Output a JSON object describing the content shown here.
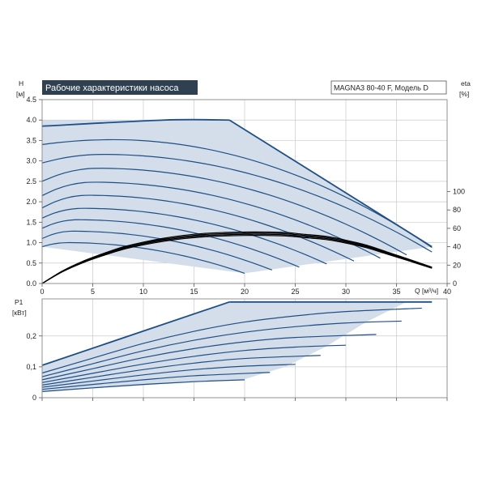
{
  "chart_data": [
    {
      "type": "line",
      "title": "Рабочие характеристики насоса",
      "model": "MAGNA3 80-40 F, Модель D",
      "xlabel": "Q [м³/ч]",
      "ylabel_top": "H",
      "ylabel_bottom": "[м]",
      "y2label_top": "eta",
      "y2label_bottom": "[%]",
      "xlim": [
        0,
        40
      ],
      "ylim": [
        0,
        4.5
      ],
      "y2lim": [
        0,
        100
      ],
      "x_ticks": [
        "0",
        "5",
        "10",
        "15",
        "20",
        "25",
        "30",
        "35",
        "40"
      ],
      "y_ticks": [
        "0.0",
        "0.5",
        "1.0",
        "1.5",
        "2.0",
        "2.5",
        "3.0",
        "3.5",
        "4.0",
        "4.5"
      ],
      "y2_ticks": [
        "0",
        "20",
        "40",
        "60",
        "80",
        "100"
      ],
      "grid": true,
      "envelope": {
        "x": [
          0,
          18.5,
          38.5,
          20,
          0
        ],
        "y": [
          4.0,
          4.0,
          0.9,
          0.25,
          0.9
        ]
      },
      "series": [
        {
          "shutoff": 0.9,
          "peak_x": 2.5,
          "peak": 1.0,
          "end_x": 20.0,
          "end": 0.25
        },
        {
          "shutoff": 1.1,
          "peak_x": 3.0,
          "peak": 1.28,
          "end_x": 22.7,
          "end": 0.33
        },
        {
          "shutoff": 1.35,
          "peak_x": 3.5,
          "peak": 1.56,
          "end_x": 25.4,
          "end": 0.4
        },
        {
          "shutoff": 1.6,
          "peak_x": 4.0,
          "peak": 1.84,
          "end_x": 28.1,
          "end": 0.48
        },
        {
          "shutoff": 1.85,
          "peak_x": 4.5,
          "peak": 2.16,
          "end_x": 30.8,
          "end": 0.55
        },
        {
          "shutoff": 2.15,
          "peak_x": 5.0,
          "peak": 2.48,
          "end_x": 33.4,
          "end": 0.62
        },
        {
          "shutoff": 2.5,
          "peak_x": 5.5,
          "peak": 2.82,
          "end_x": 36.0,
          "end": 0.7
        },
        {
          "shutoff": 2.95,
          "peak_x": 6.0,
          "peak": 3.16,
          "end_x": 38.5,
          "end": 0.77
        },
        {
          "shutoff": 3.4,
          "peak_x": 7.0,
          "peak": 3.52,
          "end_x": 38.5,
          "end": 0.88
        }
      ],
      "top_curve": {
        "x": [
          0,
          12,
          18.5
        ],
        "y": [
          3.85,
          4.0,
          4.0
        ]
      },
      "efficiency": {
        "x": [
          0,
          2,
          4,
          6,
          8,
          10,
          12,
          14,
          16,
          18,
          20,
          22,
          24,
          26,
          28,
          30,
          32,
          34,
          36,
          38.5
        ],
        "y": [
          0,
          13,
          23,
          31,
          38,
          43,
          47,
          50,
          52,
          53,
          53.5,
          53.5,
          53,
          51,
          49,
          45,
          40,
          33,
          26,
          17
        ]
      }
    },
    {
      "type": "line",
      "ylabel_top": "P1",
      "ylabel_bottom": "[кВт]",
      "xlim": [
        0,
        40
      ],
      "ylim": [
        0,
        0.32
      ],
      "y_ticks": [
        "0",
        "0,1",
        "0,2"
      ],
      "y_tick_values": [
        0,
        0.1,
        0.2
      ],
      "grid": true,
      "envelope": {
        "x": [
          0,
          18.5,
          38.5,
          36,
          32,
          28,
          24,
          20,
          0
        ],
        "y": [
          0.105,
          0.31,
          0.31,
          0.31,
          0.245,
          0.165,
          0.1,
          0.06,
          0.02
        ]
      },
      "top_curve": {
        "x": [
          0,
          18.5,
          38.5
        ],
        "y": [
          0.105,
          0.31,
          0.31
        ]
      },
      "series": [
        {
          "x": [
            0,
            5,
            10,
            15,
            20
          ],
          "y": [
            0.02,
            0.032,
            0.043,
            0.052,
            0.058
          ]
        },
        {
          "x": [
            0,
            5,
            10,
            15,
            22.5
          ],
          "y": [
            0.027,
            0.043,
            0.058,
            0.071,
            0.082
          ]
        },
        {
          "x": [
            0,
            5,
            10,
            15,
            20,
            25
          ],
          "y": [
            0.034,
            0.054,
            0.074,
            0.091,
            0.102,
            0.108
          ]
        },
        {
          "x": [
            0,
            5,
            10,
            15,
            20,
            27.5
          ],
          "y": [
            0.041,
            0.066,
            0.091,
            0.112,
            0.127,
            0.137
          ]
        },
        {
          "x": [
            0,
            5,
            10,
            15,
            20,
            25,
            30
          ],
          "y": [
            0.049,
            0.079,
            0.109,
            0.134,
            0.153,
            0.164,
            0.17
          ]
        },
        {
          "x": [
            0,
            5,
            10,
            15,
            20,
            25,
            33
          ],
          "y": [
            0.058,
            0.094,
            0.13,
            0.159,
            0.181,
            0.195,
            0.205
          ]
        },
        {
          "x": [
            0,
            5,
            10,
            15,
            20,
            25,
            30,
            35.5
          ],
          "y": [
            0.068,
            0.11,
            0.152,
            0.186,
            0.212,
            0.23,
            0.242,
            0.248
          ]
        },
        {
          "x": [
            0,
            5,
            10,
            15,
            20,
            25,
            30,
            37.5
          ],
          "y": [
            0.08,
            0.128,
            0.176,
            0.215,
            0.245,
            0.265,
            0.279,
            0.29
          ]
        }
      ]
    }
  ]
}
